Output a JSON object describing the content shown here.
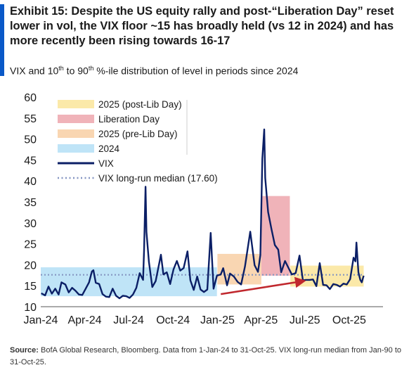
{
  "header": {
    "title": "Exhibit 15: Despite the US equity rally and post-“Liberation Day” reset lower in vol, the VIX floor ~15 has broadly held (vs 12 in 2024) and has more recently been rising towards 16-17",
    "subtitle_pre": "VIX and 10",
    "subtitle_sup": "th",
    "subtitle_mid": " to 90",
    "subtitle_post": " %-ile distribution of level in periods since 2024"
  },
  "source": {
    "label": "Source:",
    "text": " BofA Global Research, Bloomberg. Data from 1-Jan-24 to 31-Oct-25. VIX long-run median from Jan-90 to 31-Oct-25."
  },
  "chart_data": {
    "type": "line",
    "title": "VIX and 10th to 90th %-ile distribution of level in periods since 2024",
    "ylim": [
      10,
      60
    ],
    "yticks": [
      10,
      15,
      20,
      25,
      30,
      35,
      40,
      45,
      50,
      55,
      60
    ],
    "xlim": [
      "2024-01-01",
      "2025-12-10"
    ],
    "xticks": [
      {
        "date": "2024-01-01",
        "label": "Jan-24"
      },
      {
        "date": "2024-04-01",
        "label": "Apr-24"
      },
      {
        "date": "2024-07-01",
        "label": "Jul-24"
      },
      {
        "date": "2024-10-01",
        "label": "Oct-24"
      },
      {
        "date": "2025-01-01",
        "label": "Jan-25"
      },
      {
        "date": "2025-04-01",
        "label": "Apr-25"
      },
      {
        "date": "2025-07-01",
        "label": "Jul-25"
      },
      {
        "date": "2025-10-01",
        "label": "Oct-25"
      }
    ],
    "bands": [
      {
        "name": "2024",
        "start": "2024-01-01",
        "end": "2024-12-31",
        "low": 12.5,
        "high": 19.4,
        "color": "#bfe4f7"
      },
      {
        "name": "2025 (pre-Lib Day)",
        "start": "2025-01-01",
        "end": "2025-04-02",
        "low": 15.3,
        "high": 22.6,
        "color": "#f9d6b2"
      },
      {
        "name": "Liberation Day",
        "start": "2025-04-02",
        "end": "2025-05-31",
        "low": 17.4,
        "high": 36.4,
        "color": "#f0b3b9"
      },
      {
        "name": "2025 (post-Lib Day)",
        "start": "2025-06-01",
        "end": "2025-10-31",
        "low": 14.8,
        "high": 19.8,
        "color": "#fbe9a9"
      }
    ],
    "median": {
      "name": "VIX long-run median (17.60)",
      "value": 17.6,
      "color": "#8596c2"
    },
    "vix_name": "VIX",
    "vix_color": "#0b1f66",
    "vix": [
      [
        "2024-01-02",
        13.2
      ],
      [
        "2024-01-10",
        12.7
      ],
      [
        "2024-01-17",
        14.8
      ],
      [
        "2024-01-24",
        13.1
      ],
      [
        "2024-01-31",
        14.3
      ],
      [
        "2024-02-07",
        12.9
      ],
      [
        "2024-02-13",
        15.8
      ],
      [
        "2024-02-21",
        15.3
      ],
      [
        "2024-02-28",
        13.4
      ],
      [
        "2024-03-06",
        14.5
      ],
      [
        "2024-03-13",
        13.8
      ],
      [
        "2024-03-20",
        12.9
      ],
      [
        "2024-03-27",
        12.8
      ],
      [
        "2024-04-03",
        14.3
      ],
      [
        "2024-04-10",
        15.8
      ],
      [
        "2024-04-16",
        18.4
      ],
      [
        "2024-04-19",
        18.7
      ],
      [
        "2024-04-24",
        15.7
      ],
      [
        "2024-05-01",
        15.4
      ],
      [
        "2024-05-08",
        13.0
      ],
      [
        "2024-05-15",
        12.4
      ],
      [
        "2024-05-22",
        12.3
      ],
      [
        "2024-05-29",
        14.3
      ],
      [
        "2024-06-05",
        12.6
      ],
      [
        "2024-06-12",
        12.0
      ],
      [
        "2024-06-19",
        12.6
      ],
      [
        "2024-06-26",
        12.5
      ],
      [
        "2024-07-03",
        12.1
      ],
      [
        "2024-07-10",
        12.9
      ],
      [
        "2024-07-17",
        14.5
      ],
      [
        "2024-07-24",
        18.0
      ],
      [
        "2024-07-31",
        16.4
      ],
      [
        "2024-08-02",
        23.4
      ],
      [
        "2024-08-05",
        38.6
      ],
      [
        "2024-08-07",
        27.8
      ],
      [
        "2024-08-12",
        20.7
      ],
      [
        "2024-08-19",
        14.7
      ],
      [
        "2024-08-26",
        16.1
      ],
      [
        "2024-09-03",
        20.7
      ],
      [
        "2024-09-06",
        22.4
      ],
      [
        "2024-09-11",
        17.7
      ],
      [
        "2024-09-18",
        18.2
      ],
      [
        "2024-09-25",
        15.4
      ],
      [
        "2024-10-02",
        18.9
      ],
      [
        "2024-10-09",
        20.9
      ],
      [
        "2024-10-16",
        18.6
      ],
      [
        "2024-10-23",
        19.2
      ],
      [
        "2024-10-31",
        23.2
      ],
      [
        "2024-11-06",
        16.3
      ],
      [
        "2024-11-13",
        14.0
      ],
      [
        "2024-11-20",
        17.2
      ],
      [
        "2024-11-27",
        14.1
      ],
      [
        "2024-12-04",
        13.5
      ],
      [
        "2024-12-11",
        14.1
      ],
      [
        "2024-12-18",
        27.6
      ],
      [
        "2024-12-24",
        14.3
      ],
      [
        "2024-12-31",
        17.4
      ],
      [
        "2025-01-08",
        17.7
      ],
      [
        "2025-01-13",
        19.2
      ],
      [
        "2025-01-21",
        15.1
      ],
      [
        "2025-01-27",
        17.9
      ],
      [
        "2025-02-04",
        17.2
      ],
      [
        "2025-02-12",
        15.9
      ],
      [
        "2025-02-19",
        15.3
      ],
      [
        "2025-02-27",
        19.6
      ],
      [
        "2025-03-06",
        24.9
      ],
      [
        "2025-03-10",
        27.9
      ],
      [
        "2025-03-19",
        19.9
      ],
      [
        "2025-03-26",
        18.3
      ],
      [
        "2025-03-31",
        22.3
      ],
      [
        "2025-04-04",
        45.3
      ],
      [
        "2025-04-08",
        52.3
      ],
      [
        "2025-04-10",
        40.7
      ],
      [
        "2025-04-16",
        32.6
      ],
      [
        "2025-04-23",
        28.5
      ],
      [
        "2025-04-30",
        24.7
      ],
      [
        "2025-05-07",
        23.6
      ],
      [
        "2025-05-13",
        18.2
      ],
      [
        "2025-05-21",
        20.9
      ],
      [
        "2025-05-28",
        19.3
      ],
      [
        "2025-06-04",
        17.7
      ],
      [
        "2025-06-12",
        18.0
      ],
      [
        "2025-06-20",
        22.2
      ],
      [
        "2025-06-27",
        16.3
      ],
      [
        "2025-07-03",
        16.4
      ],
      [
        "2025-07-11",
        16.4
      ],
      [
        "2025-07-18",
        16.5
      ],
      [
        "2025-07-25",
        14.9
      ],
      [
        "2025-08-01",
        20.4
      ],
      [
        "2025-08-08",
        15.2
      ],
      [
        "2025-08-15",
        15.1
      ],
      [
        "2025-08-22",
        14.2
      ],
      [
        "2025-08-29",
        15.4
      ],
      [
        "2025-09-05",
        15.2
      ],
      [
        "2025-09-12",
        14.8
      ],
      [
        "2025-09-19",
        15.5
      ],
      [
        "2025-09-26",
        15.3
      ],
      [
        "2025-10-03",
        16.6
      ],
      [
        "2025-10-10",
        21.7
      ],
      [
        "2025-10-14",
        20.8
      ],
      [
        "2025-10-16",
        25.3
      ],
      [
        "2025-10-20",
        18.2
      ],
      [
        "2025-10-24",
        16.4
      ],
      [
        "2025-10-27",
        15.8
      ],
      [
        "2025-10-31",
        17.4
      ]
    ]
  }
}
